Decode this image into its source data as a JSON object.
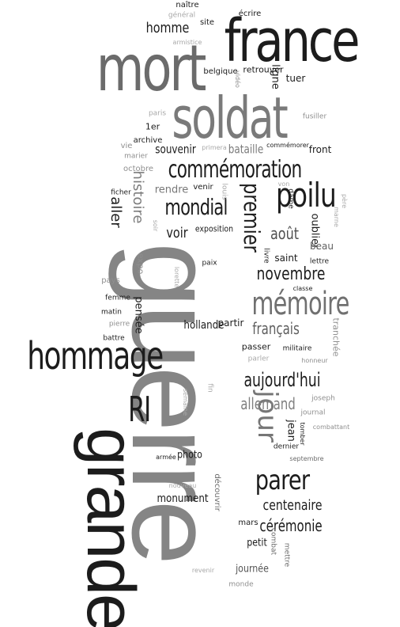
{
  "words": {
    "guerre": "guerre",
    "grande": "grande",
    "france": "france",
    "mort": "mort",
    "soldat": "soldat",
    "hommage": "hommage",
    "memoire": "mémoire",
    "poilu": "poilu",
    "commemoration": "commémoration",
    "parer": "parer",
    "mondial": "mondial",
    "jour": "jour",
    "premier": "premier",
    "novembre": "novembre",
    "aujourdhui": "aujourd'hui",
    "ri": "RI",
    "centenaire": "centenaire",
    "ceremonie": "cérémonie",
    "francais": "français",
    "allemand": "allemand",
    "histoire": "histoire",
    "aout": "août",
    "homme": "homme",
    "voir": "voir",
    "aller": "aller",
    "souvenir": "souvenir",
    "bataille": "bataille",
    "monument": "monument",
    "hollande": "hollande",
    "exposition": "exposition",
    "petit": "petit",
    "journee": "journée",
    "photo": "photo",
    "jean": "jean",
    "ligne": "ligne",
    "pensee": "pensée",
    "oublier": "oublier",
    "beau": "beau",
    "saint": "saint",
    "partir": "partir",
    "rendre": "rendre",
    "front": "front",
    "tuer": "tuer",
    "retrouver": "retrouver",
    "belgique": "belgique",
    "ecrire": "écrire",
    "naitre": "naître",
    "site": "site",
    "general": "général",
    "armistice": "armistice",
    "video": "vidéo",
    "paris": "paris",
    "fusiller": "fusiller",
    "premiere": "1er",
    "archive": "archive",
    "vie": "vie",
    "marier": "marier",
    "octobre": "octobre",
    "primera": "primera",
    "commemorer": "commémorer",
    "ficher": "ficher",
    "von": "von",
    "venir": "venir",
    "louis": "louis",
    "dame": "dame",
    "pere": "père",
    "marne": "marne",
    "soir": "soir",
    "expo": "expo",
    "livre": "livre",
    "paix": "paix",
    "lettre": "lettre",
    "classe": "classe",
    "pays": "pays",
    "lorette": "lorette",
    "femme": "femme",
    "matin": "matin",
    "pierre": "pierre",
    "battre": "battre",
    "tranchee": "tranchée",
    "passer": "passer",
    "militaire": "militaire",
    "parler": "parler",
    "honneur": "honneur",
    "fin": "fin",
    "semaine": "semaine",
    "joseph": "joseph",
    "journal": "journal",
    "combattant": "combattant",
    "tomber": "tomber",
    "dernier": "dernier",
    "septembre": "septembre",
    "armee": "armée",
    "nouveau": "nouveau",
    "decouvrir": "découvrir",
    "mars": "mars",
    "combat": "combat",
    "mettre": "mettre",
    "revenir": "revenir",
    "monde": "monde"
  },
  "colors": {
    "dark": "#1c1c1c",
    "mid": "#6b6b6b",
    "light": "#8f8f8f",
    "pale": "#a8a8a8"
  }
}
